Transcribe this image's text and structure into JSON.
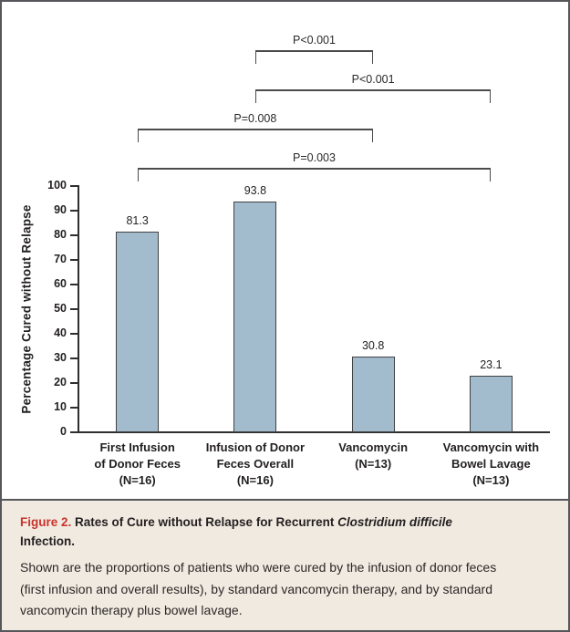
{
  "caption": {
    "label": "Figure 2.",
    "title_main": "Rates of Cure without Relapse for Recurrent",
    "title_italic": "Clostridium difficile",
    "title_end": "Infection.",
    "body": "Shown are the proportions of patients who were cured by the infusion of donor feces (first infusion and overall results), by standard vancomycin therapy, and by standard vancomycin therapy plus bowel lavage."
  },
  "theme": {
    "figure_label_color": "#c9332b",
    "caption_bg": "#f1eae1",
    "text_color": "#231f20",
    "axis_color": "#2e2e30",
    "outer_border_color": "#56575a"
  },
  "chart_data": {
    "type": "bar",
    "title": "",
    "xlabel": "",
    "ylabel": "Percentage Cured without Relapse",
    "ylim": [
      0,
      100
    ],
    "yticks": [
      0,
      10,
      20,
      30,
      40,
      50,
      60,
      70,
      80,
      90,
      100
    ],
    "grid": false,
    "legend": null,
    "categories": [
      [
        "First Infusion",
        "of Donor Feces",
        "(N=16)"
      ],
      [
        "Infusion of Donor",
        "Feces Overall",
        "(N=16)"
      ],
      [
        "Vancomycin",
        "(N=13)"
      ],
      [
        "Vancomycin with",
        "Bowel Lavage",
        "(N=13)"
      ]
    ],
    "values": [
      81.3,
      93.8,
      30.8,
      23.1
    ],
    "value_labels": [
      "81.3",
      "93.8",
      "30.8",
      "23.1"
    ],
    "bar_color": "#a3bccd",
    "bar_border_color": "#414144",
    "comparisons": [
      {
        "label": "P<0.001",
        "from": 1,
        "to": 2
      },
      {
        "label": "P<0.001",
        "from": 1,
        "to": 3
      },
      {
        "label": "P=0.008",
        "from": 0,
        "to": 2
      },
      {
        "label": "P=0.003",
        "from": 0,
        "to": 3
      }
    ]
  }
}
